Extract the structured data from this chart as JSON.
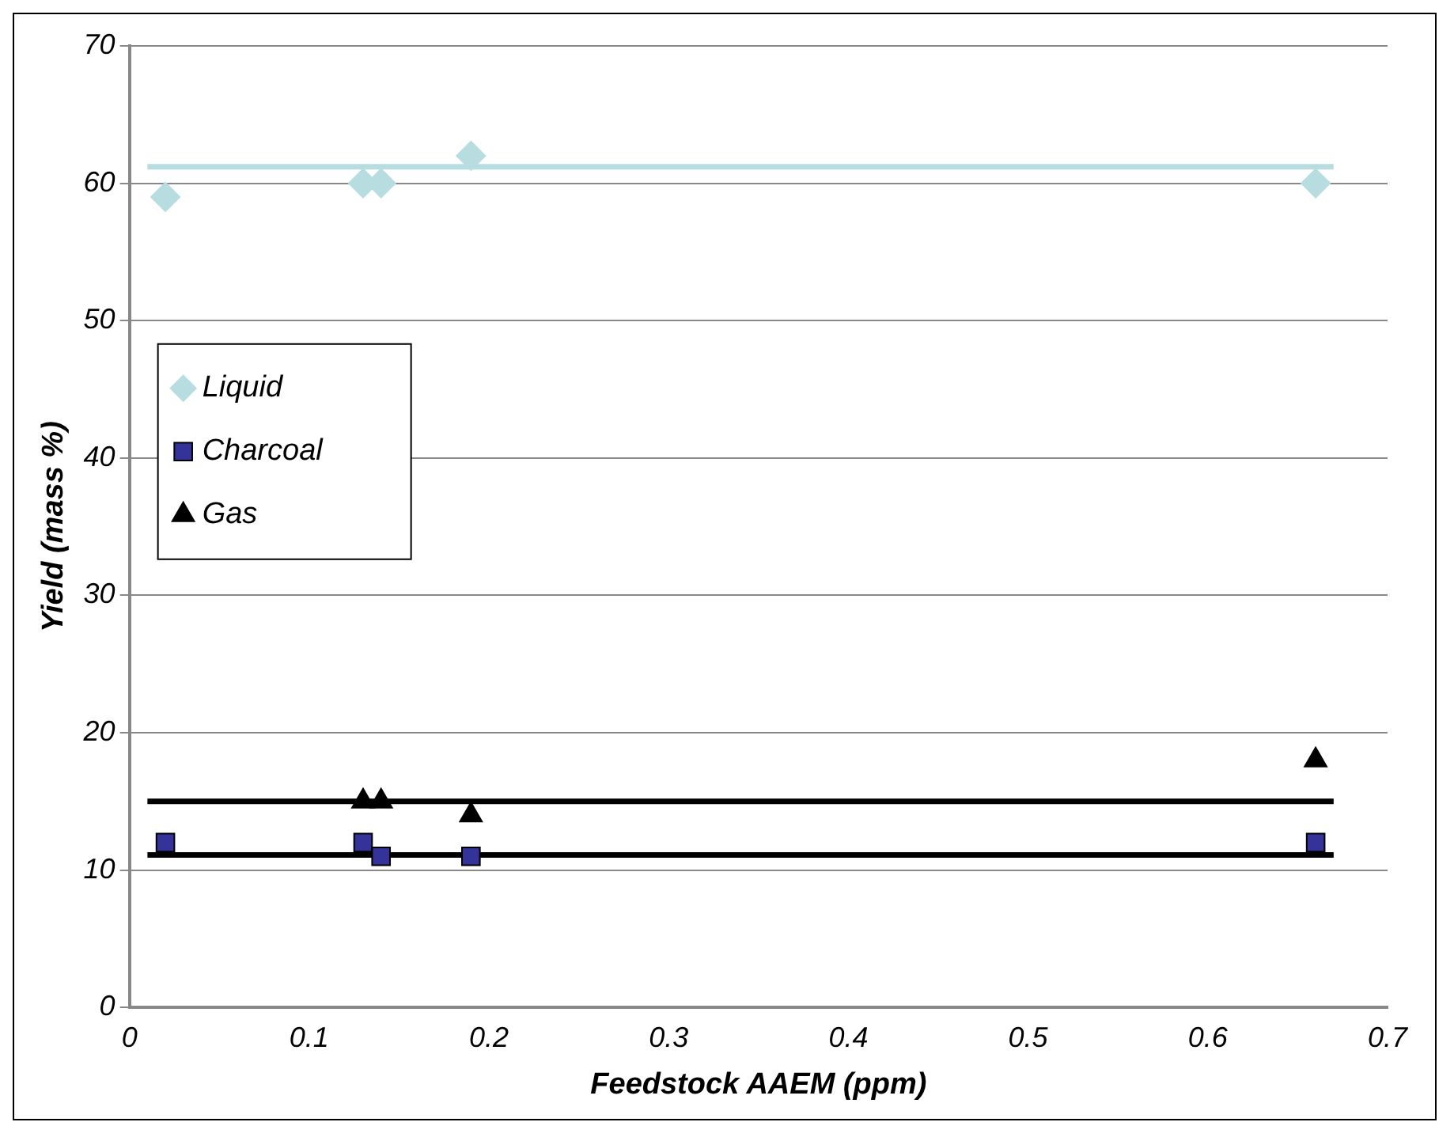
{
  "chart_data": {
    "type": "scatter",
    "xlabel": "Feedstock AAEM (ppm)",
    "ylabel": "Yield (mass %)",
    "xlim": [
      0,
      0.7
    ],
    "xticks": [
      0,
      0.1,
      0.2,
      0.3,
      0.4,
      0.5,
      0.6,
      0.7
    ],
    "ylim": [
      0,
      70
    ],
    "yticks": [
      0,
      10,
      20,
      30,
      40,
      50,
      60,
      70
    ],
    "grid": "y",
    "legend": "left",
    "series": [
      {
        "name": "Liquid",
        "marker": "diamond",
        "color": "#b7dde0",
        "x": [
          0.02,
          0.13,
          0.14,
          0.19,
          0.66
        ],
        "values": [
          59,
          60,
          60,
          62,
          60
        ]
      },
      {
        "name": "Charcoal",
        "marker": "square",
        "color": "#333399",
        "x": [
          0.02,
          0.13,
          0.14,
          0.19,
          0.66
        ],
        "values": [
          12,
          12,
          11,
          11,
          12
        ]
      },
      {
        "name": "Gas",
        "marker": "triangle",
        "color": "#000000",
        "x": [
          0.13,
          0.14,
          0.19,
          0.66
        ],
        "values": [
          15,
          15,
          14,
          18
        ]
      },
      {
        "type": "line",
        "marker": "none",
        "color": "#b7dde0",
        "x": [
          0.01,
          0.67
        ],
        "values": [
          61.2,
          61.2
        ]
      },
      {
        "type": "line",
        "marker": "none",
        "color": "#000000",
        "x": [
          0.01,
          0.67
        ],
        "values": [
          15,
          15
        ]
      },
      {
        "type": "line",
        "marker": "none",
        "color": "#000000",
        "x": [
          0.01,
          0.67
        ],
        "values": [
          11.1,
          11.1
        ]
      }
    ]
  }
}
